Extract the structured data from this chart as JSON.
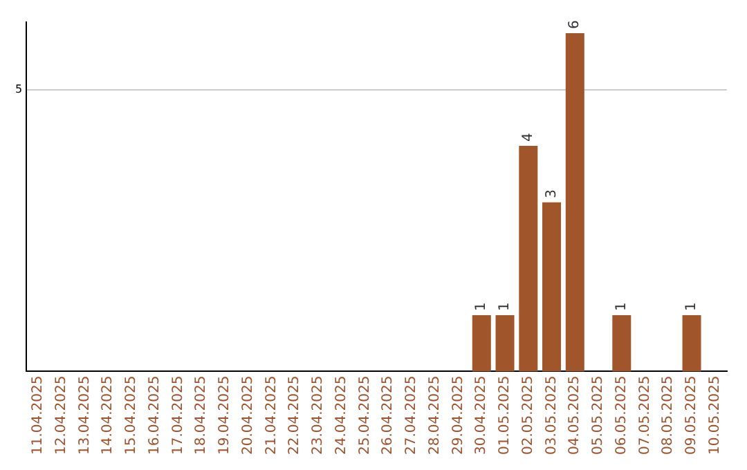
{
  "chart_data": {
    "type": "bar",
    "categories": [
      "11.04.2025",
      "12.04.2025",
      "13.04.2025",
      "14.04.2025",
      "15.04.2025",
      "16.04.2025",
      "17.04.2025",
      "18.04.2025",
      "19.04.2025",
      "20.04.2025",
      "21.04.2025",
      "22.04.2025",
      "23.04.2025",
      "24.04.2025",
      "25.04.2025",
      "26.04.2025",
      "27.04.2025",
      "28.04.2025",
      "29.04.2025",
      "30.04.2025",
      "01.05.2025",
      "02.05.2025",
      "03.05.2025",
      "04.05.2025",
      "05.05.2025",
      "06.05.2025",
      "07.05.2025",
      "08.05.2025",
      "09.05.2025",
      "10.05.2025"
    ],
    "values": [
      null,
      null,
      null,
      null,
      null,
      null,
      null,
      null,
      null,
      null,
      null,
      null,
      null,
      null,
      null,
      null,
      null,
      null,
      null,
      1,
      1,
      4,
      3,
      6,
      null,
      1,
      null,
      null,
      1,
      null
    ],
    "color": "#a0562a",
    "ylim": [
      0,
      6.2
    ],
    "yticks": [
      5
    ],
    "grid": "y",
    "data_labels": true,
    "legend": false
  }
}
